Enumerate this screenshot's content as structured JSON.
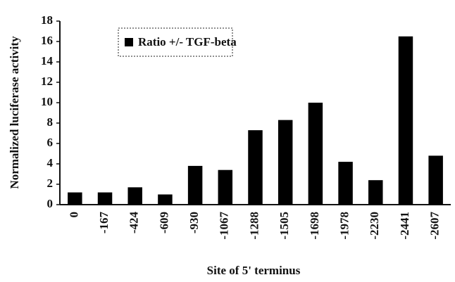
{
  "chart_data": {
    "type": "bar",
    "xlabel": "Site of 5' terminus",
    "ylabel": "Normalized luciferase activity",
    "categories": [
      "0",
      "-167",
      "-424",
      "-609",
      "-930",
      "-1067",
      "-1288",
      "-1505",
      "-1698",
      "-1978",
      "-2230",
      "-2441",
      "-2607"
    ],
    "series": [
      {
        "name": "Ratio +/- TGF-beta",
        "color": "#000000",
        "values": [
          1.2,
          1.2,
          1.7,
          1.0,
          3.8,
          3.4,
          7.3,
          8.3,
          10.0,
          4.2,
          2.4,
          16.5,
          4.8
        ]
      }
    ],
    "ylim": [
      0,
      18
    ],
    "yticks": [
      0,
      2,
      4,
      6,
      8,
      10,
      12,
      14,
      16,
      18
    ],
    "grid": false,
    "legend": "top-left"
  }
}
